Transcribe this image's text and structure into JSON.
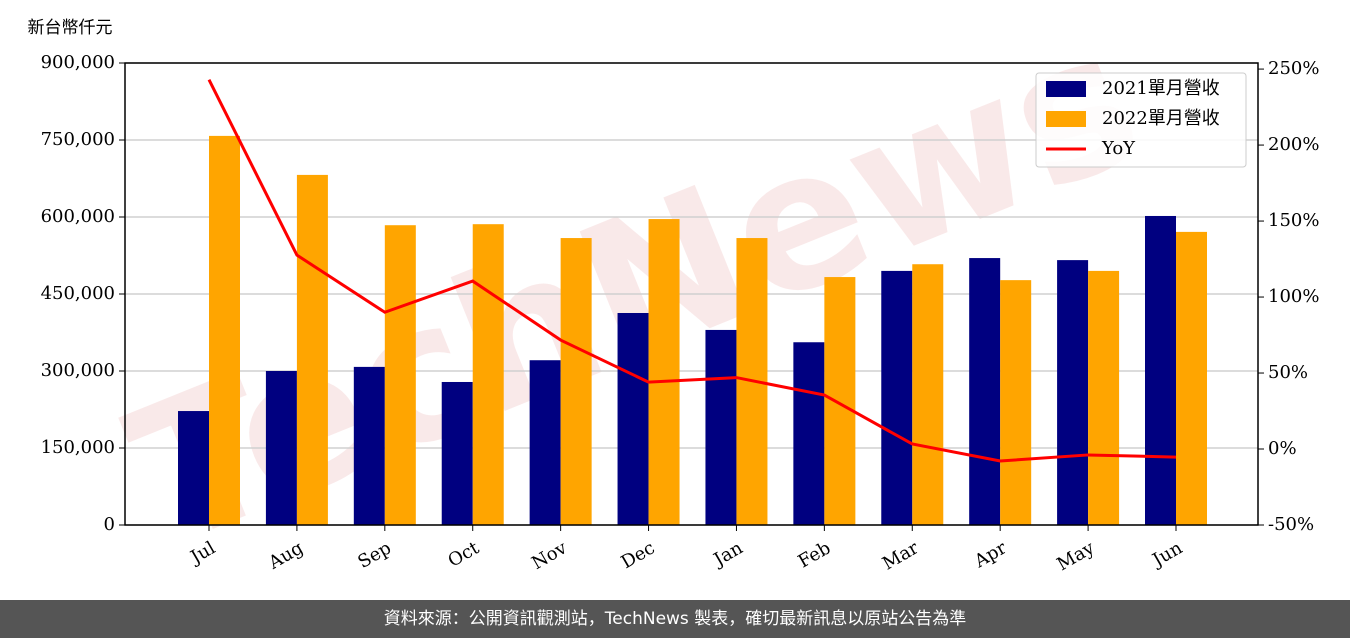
{
  "chart_data": {
    "type": "bar",
    "y_label": "新台幣仟元",
    "categories": [
      "Jul",
      "Aug",
      "Sep",
      "Oct",
      "Nov",
      "Dec",
      "Jan",
      "Feb",
      "Mar",
      "Apr",
      "May",
      "Jun"
    ],
    "series": [
      {
        "name": "2021單月營收",
        "color": "#000080",
        "values": [
          222000,
          300000,
          308000,
          278600,
          321000,
          413000,
          380000,
          356000,
          495000,
          520000,
          516000,
          602000
        ]
      },
      {
        "name": "2022單月營收",
        "color": "#ffa500",
        "values": [
          758000,
          682000,
          584000,
          586000,
          559000,
          596000,
          559000,
          483000,
          508000,
          477000,
          495000,
          571000
        ]
      },
      {
        "name": "YoY",
        "color": "#ff0000",
        "type": "line",
        "axis": "y2",
        "values": [
          243,
          127.6,
          90,
          110.5,
          71.7,
          44,
          47,
          35.5,
          3.3,
          -7.9,
          -3.9,
          -5.3
        ]
      }
    ],
    "ylim": [
      0,
      900000
    ],
    "yticks": [
      0,
      {
        "value": 150000,
        "label": "150,000"
      },
      {
        "value": 300000,
        "label": "300,000"
      },
      {
        "value": 450000,
        "label": "450,000"
      },
      {
        "value": 600000,
        "label": "600,000"
      },
      {
        "value": 750000,
        "label": "750,000"
      },
      {
        "value": 900000,
        "label": "900,000"
      }
    ],
    "y2lim": [
      -50,
      254
    ],
    "y2ticks": [
      {
        "value": -50,
        "label": "-50%"
      },
      {
        "value": 0,
        "label": "0%"
      },
      {
        "value": 50,
        "label": "50%"
      },
      {
        "value": 100,
        "label": "100%"
      },
      {
        "value": 150,
        "label": "150%"
      },
      {
        "value": 200,
        "label": "200%"
      },
      {
        "value": 250,
        "label": "250%"
      }
    ],
    "grid": true,
    "legend": "upper right",
    "watermark": "TechNews",
    "footer": "資料來源：公開資訊觀測站，TechNews 製表，確切最新訊息以原站公告為準"
  }
}
